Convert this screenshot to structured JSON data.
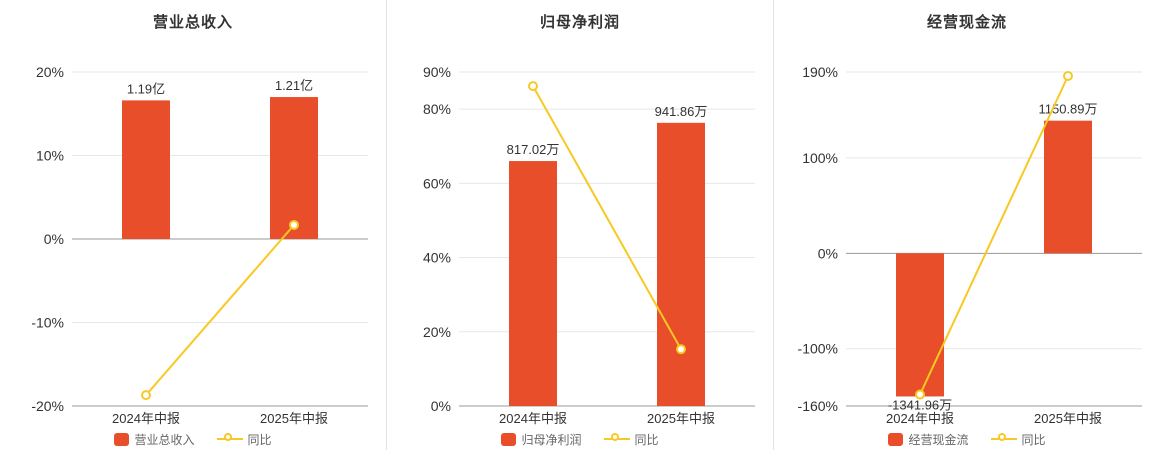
{
  "colors": {
    "bar": "#e74e29",
    "line": "#f8c823",
    "grid": "#e7e7e7",
    "zero_axis": "#999999",
    "bottom_axis": "#999999",
    "text": "#333333",
    "legend_text": "#666666",
    "background": "#ffffff"
  },
  "chart_data": [
    {
      "type": "bar+line",
      "title": "营业总收入",
      "categories": [
        "2024年中报",
        "2025年中报"
      ],
      "bar_name": "营业总收入",
      "bar_labels": [
        "1.19亿",
        "1.21亿"
      ],
      "bar_values": [
        1.19,
        1.21
      ],
      "bar_unit": "亿",
      "bar_pct": [
        16.6,
        17.0
      ],
      "line_name": "同比",
      "line_pct": [
        -18.7,
        1.68
      ],
      "ylim": [
        -20,
        20
      ],
      "yticks": [
        -20,
        -10,
        0,
        10,
        20
      ],
      "y_unit": "%",
      "legend_position": "bottom",
      "grid": true
    },
    {
      "type": "bar+line",
      "title": "归母净利润",
      "categories": [
        "2024年中报",
        "2025年中报"
      ],
      "bar_name": "归母净利润",
      "bar_labels": [
        "817.02万",
        "941.86万"
      ],
      "bar_values": [
        817.02,
        941.86
      ],
      "bar_unit": "万",
      "bar_pct": [
        66.0,
        76.3
      ],
      "line_name": "同比",
      "line_pct": [
        86.2,
        15.3
      ],
      "ylim": [
        0,
        90
      ],
      "yticks": [
        0,
        20,
        40,
        60,
        80,
        90
      ],
      "y_unit": "%",
      "legend_position": "bottom",
      "grid": true
    },
    {
      "type": "bar+line",
      "title": "经营现金流",
      "categories": [
        "2024年中报",
        "2025年中报"
      ],
      "bar_name": "经营现金流",
      "bar_labels": [
        "-1341.96万",
        "1150.89万"
      ],
      "bar_values": [
        -1341.96,
        1150.89
      ],
      "bar_unit": "万",
      "bar_pct": [
        -150.0,
        139.0
      ],
      "line_name": "同比",
      "line_pct": [
        -148.0,
        185.8
      ],
      "ylim": [
        -160,
        190
      ],
      "yticks": [
        -160,
        -100,
        0,
        100,
        190
      ],
      "y_unit": "%",
      "legend_position": "bottom",
      "grid": true
    }
  ]
}
